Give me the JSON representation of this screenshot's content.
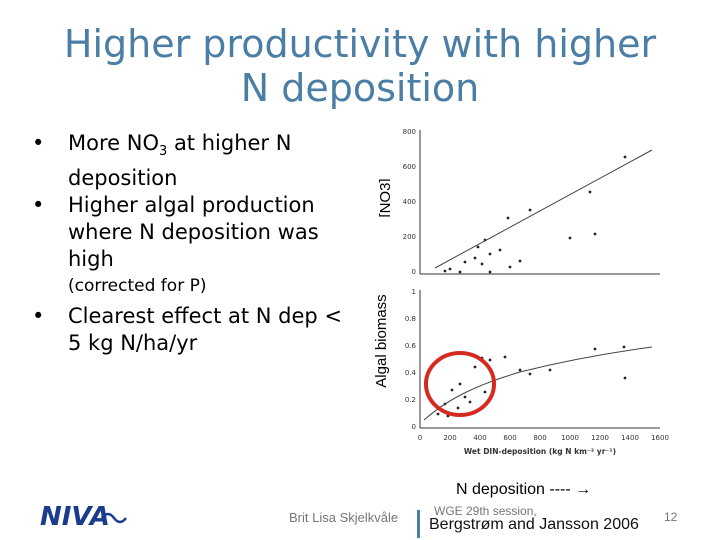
{
  "title_line1": "Higher productivity with higher",
  "title_line2": "N deposition",
  "bullets": [
    {
      "pre": "More NO",
      "sub": "3",
      "post": " at higher N deposition"
    },
    {
      "text": "Higher algal production where N deposition was high"
    },
    {
      "note": "(corrected for P)"
    },
    {
      "text": "Clearest effect at N dep < 5 kg N/ha/yr"
    }
  ],
  "y_label_no3": "[NO3]",
  "y_label_algal": "Algal biomass",
  "plot_top_yticks": [
    "800",
    "600",
    "400",
    "200",
    "0"
  ],
  "plot_bottom_yticks": [
    "1",
    "0.8",
    "0.6",
    "0.4",
    "0.2",
    "0"
  ],
  "plot_xticks": [
    "0",
    "200",
    "400",
    "600",
    "800",
    "1000",
    "1200",
    "1400",
    "1600"
  ],
  "plot_xaxis_label": "Wet DIN-deposition (kg N km⁻² yr⁻¹)",
  "x_caption": "N deposition ---- →",
  "footer_author": "Brit Lisa Skjelkvåle",
  "footer_session": "WGE 29th session,",
  "footer_citation": "Bergstrøm and Jansson 2006",
  "page_number": "12",
  "logo_text": "NIVA",
  "colors": {
    "title": "#4a7ea5",
    "highlight_circle": "#d42a1f"
  }
}
